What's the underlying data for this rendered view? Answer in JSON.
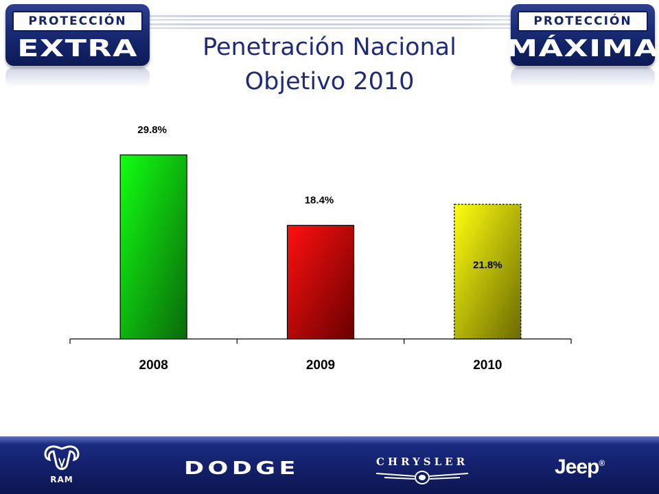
{
  "header": {
    "title_line1": "Penetración Nacional",
    "title_line2": "Objetivo  2010",
    "badge_left": {
      "top": "PROTECCIÓN",
      "bottom": "EXTRA"
    },
    "badge_right": {
      "top": "PROTECCIÓN",
      "bottom": "MÁXIMA"
    }
  },
  "chart_data": {
    "type": "bar",
    "categories": [
      "2008",
      "2009",
      "2010"
    ],
    "values": [
      29.8,
      18.4,
      21.8
    ],
    "labels": [
      "29.8%",
      "18.4%",
      "21.8%"
    ],
    "colors": [
      {
        "top": "#12ff12",
        "bottom": "#0a6a0a"
      },
      {
        "top": "#ff1010",
        "bottom": "#6a0000"
      },
      {
        "top": "#ffff10",
        "bottom": "#6a6a00"
      }
    ],
    "ylim": [
      0,
      33
    ],
    "grid": false,
    "title": "",
    "xlabel": "",
    "ylabel": ""
  },
  "footer": {
    "brands": [
      "RAM",
      "DODGE",
      "CHRYSLER",
      "Jeep"
    ],
    "icons": [
      "ram-head-icon",
      "chrysler-wings-icon"
    ]
  }
}
